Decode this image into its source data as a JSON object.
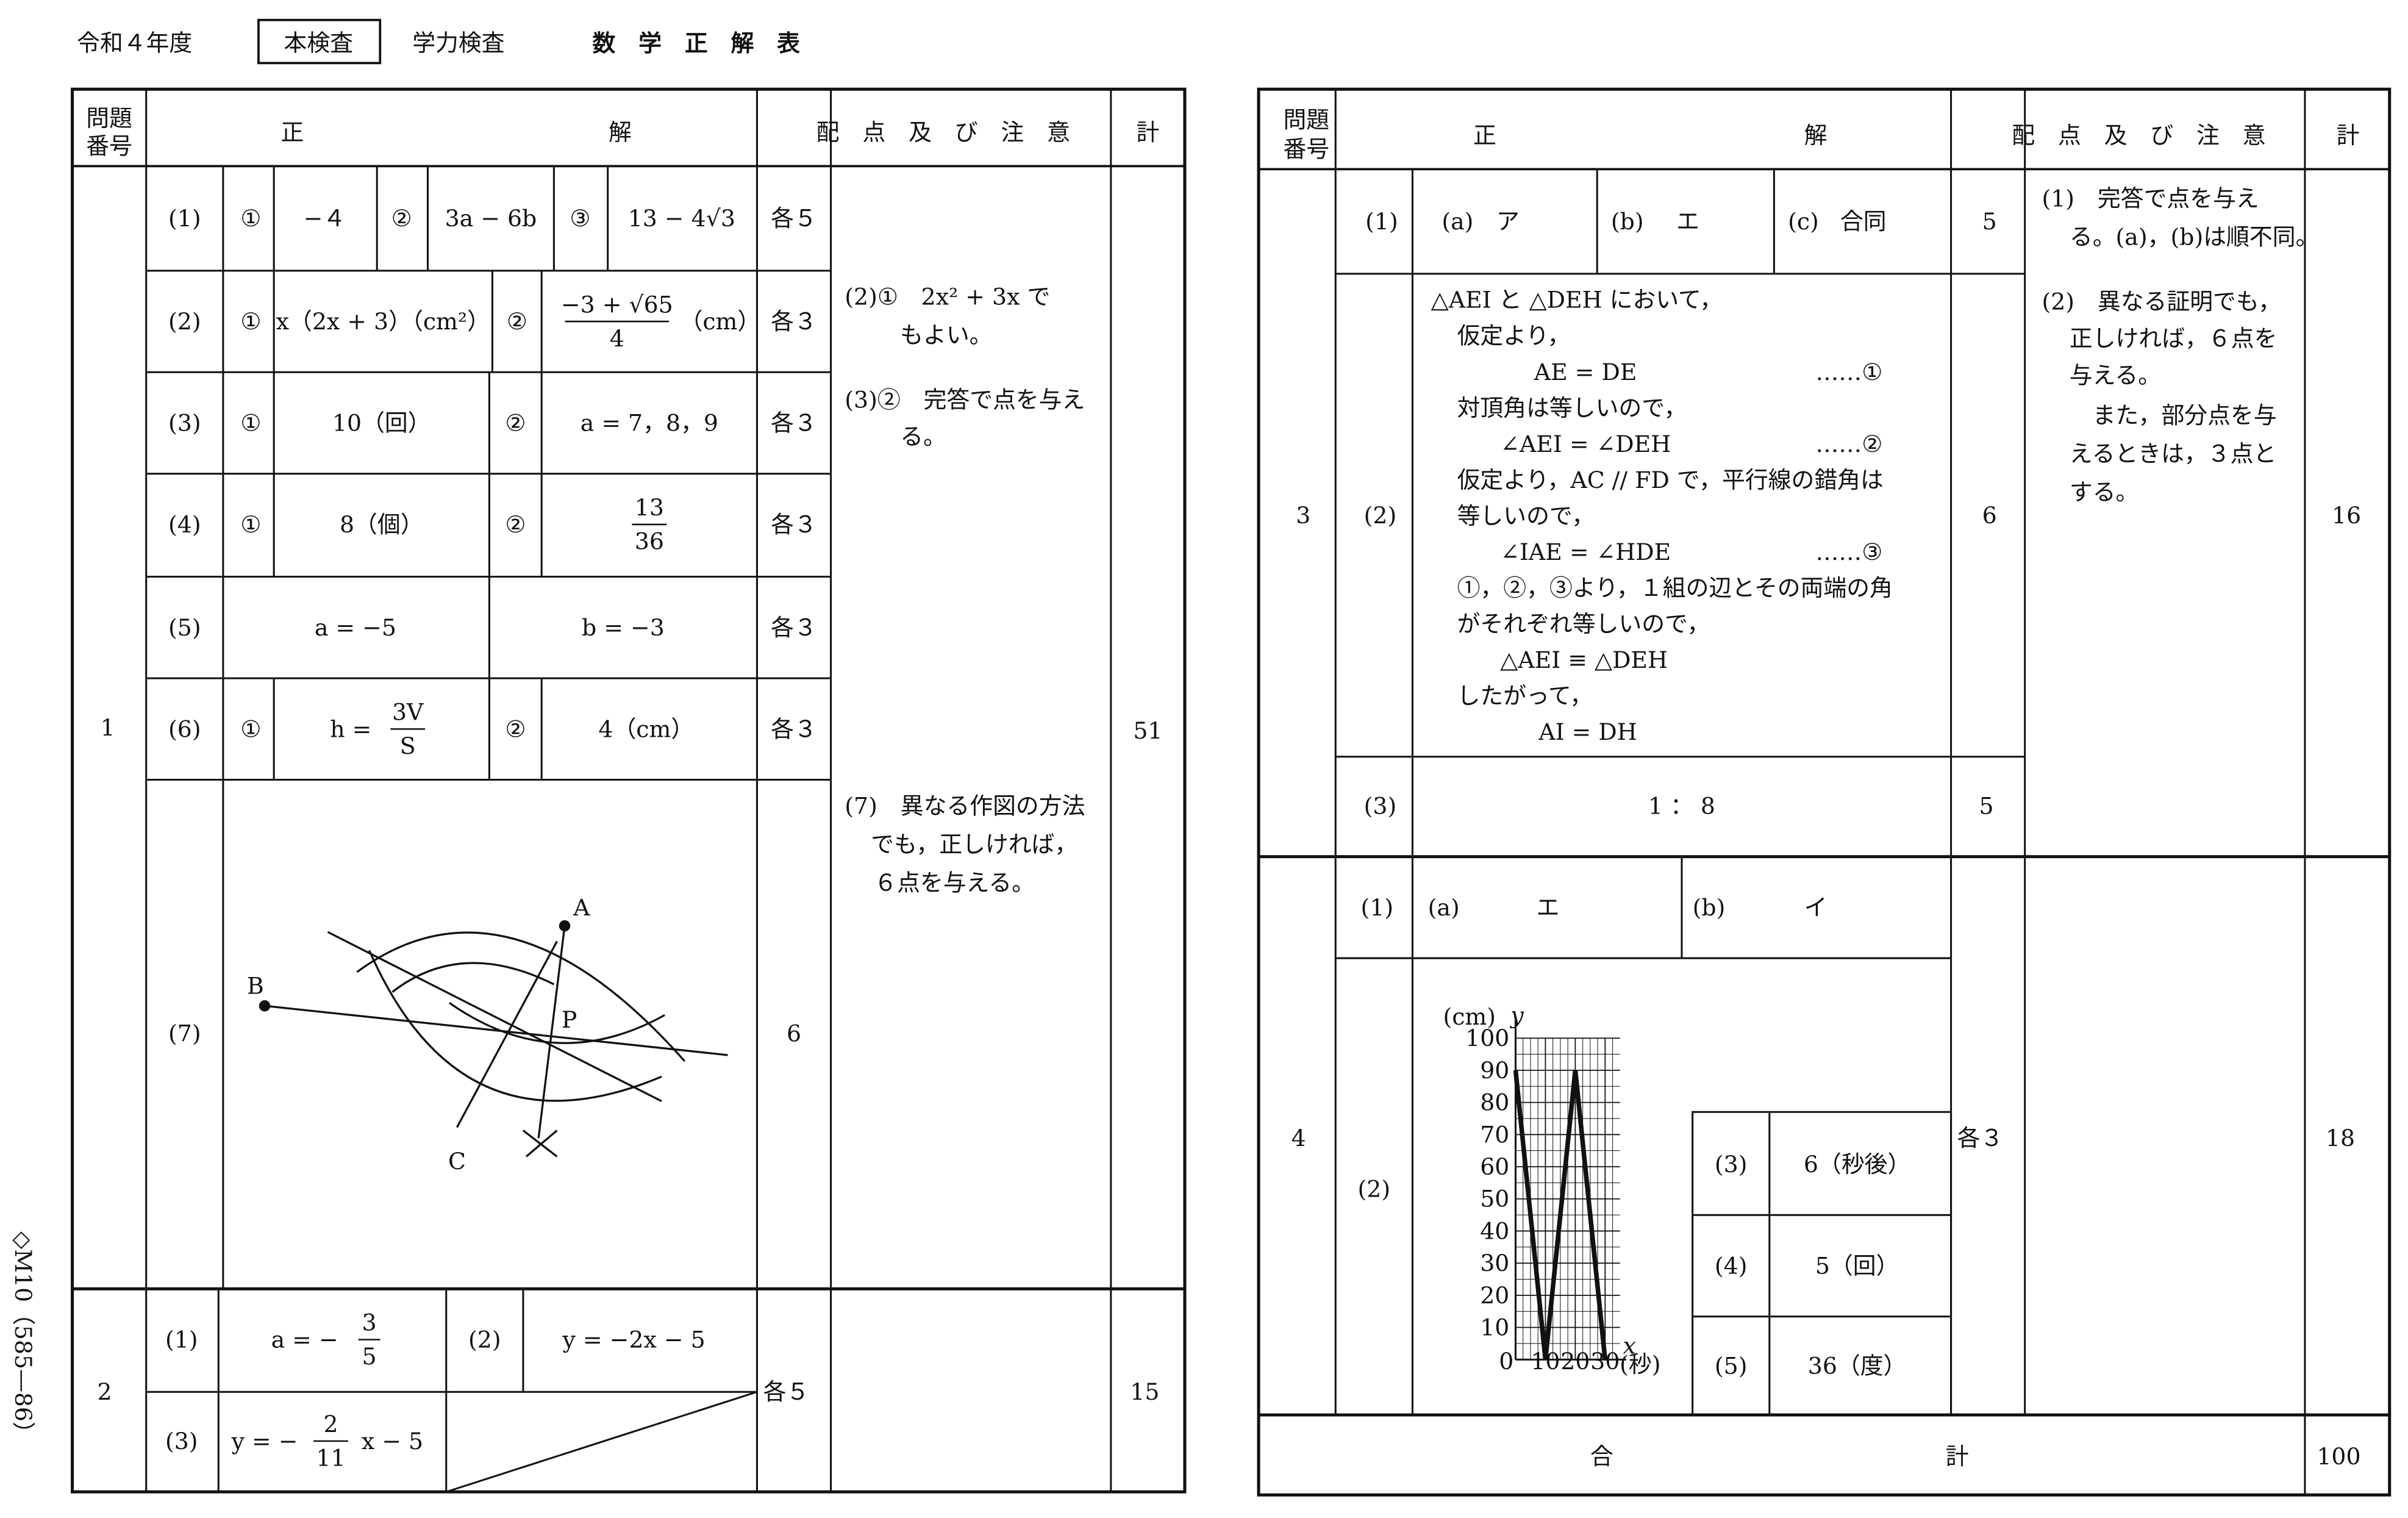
{
  "header": {
    "year": "令和４年度",
    "exam_type": "本検査",
    "subject_label": "学力検査",
    "title": "数　学　正　解　表"
  },
  "side_code": "◇M10（585—86）",
  "left_header": {
    "q_1": "問題",
    "q_2": "番号",
    "answer_1": "正",
    "answer_2": "解",
    "points": "配　点　及　び　注　意",
    "total": "計"
  },
  "q1": {
    "number": "1",
    "total": "51",
    "notes": [
      "(2)①　2x² + 3x で",
      "もよい。",
      "(3)②　完答で点を与え",
      "る。",
      "(7)　異なる作図の方法",
      "でも，正しければ，",
      "６点を与える。"
    ],
    "rows": [
      {
        "sub": "(1)",
        "points": "各５",
        "items": [
          {
            "mark": "①",
            "answer": "−４"
          },
          {
            "mark": "②",
            "answer": "3a − 6b"
          },
          {
            "mark": "③",
            "answer": "13 − 4√3"
          }
        ]
      },
      {
        "sub": "(2)",
        "points": "各３",
        "items": [
          {
            "mark": "①",
            "answer": "x（2x + 3）（cm²）"
          },
          {
            "mark": "②",
            "numerator": "−3 + √65",
            "denominator": "4",
            "unit": "（cm）"
          }
        ]
      },
      {
        "sub": "(3)",
        "points": "各３",
        "items": [
          {
            "mark": "①",
            "answer": "10（回）"
          },
          {
            "mark": "②",
            "answer": "a = 7，8，9"
          }
        ]
      },
      {
        "sub": "(4)",
        "points": "各３",
        "items": [
          {
            "mark": "①",
            "answer": "8（個）"
          },
          {
            "mark": "②",
            "numerator": "13",
            "denominator": "36"
          }
        ]
      },
      {
        "sub": "(5)",
        "points": "各３",
        "items": [
          {
            "answer": "a = −5"
          },
          {
            "answer": "b = −3"
          }
        ]
      },
      {
        "sub": "(6)",
        "points": "各３",
        "items": [
          {
            "mark": "①",
            "prefix": "h =",
            "numerator": "3V",
            "denominator": "S"
          },
          {
            "mark": "②",
            "answer": "4（cm）"
          }
        ]
      },
      {
        "sub": "(7)",
        "points": "6",
        "figure": {
          "a": "A",
          "b": "B",
          "c": "C",
          "p": "P"
        }
      }
    ]
  },
  "q2": {
    "number": "2",
    "total": "15",
    "points": "各５",
    "rows": [
      {
        "sub": "(1)",
        "answer": {
          "prefix": "a = −",
          "numerator": "3",
          "denominator": "5"
        },
        "sub2": "(2)",
        "answer2": "y = −2x − 5"
      },
      {
        "sub": "(3)",
        "answer": {
          "prefix": "y = −",
          "numerator": "2",
          "denominator": "11",
          "suffix": "x − 5"
        }
      }
    ]
  },
  "right_header": {
    "q_1": "問題",
    "q_2": "番号",
    "answer_1": "正",
    "answer_2": "解",
    "points": "配　点　及　び　注　意",
    "total": "計"
  },
  "q3": {
    "number": "3",
    "total": "16",
    "notes": [
      "(1)　完答で点を与え",
      "る。(a)，(b)は順不同。",
      "(2)　異なる証明でも，",
      "正しければ，６点を",
      "与える。",
      "　また，部分点を与",
      "えるときは，３点と",
      "する。"
    ],
    "rows": [
      {
        "sub": "(1)",
        "points": "5",
        "items": [
          {
            "label": "(a)",
            "answer": "ア"
          },
          {
            "label": "(b)",
            "answer": "エ"
          },
          {
            "label": "(c)",
            "answer": "合同"
          }
        ]
      },
      {
        "sub": "(2)",
        "points": "6",
        "proof": [
          "△AEI と △DEH において，",
          "仮定より，",
          "AE = DE",
          "対頂角は等しいので，",
          "∠AEI = ∠DEH",
          "仮定より，AC // FD で，平行線の錯角は",
          "等しいので，",
          "∠IAE = ∠HDE",
          "①，②，③より，１組の辺とその両端の角",
          "がそれぞれ等しいので，",
          "△AEI ≡ △DEH",
          "したがって，",
          "AI = DH"
        ],
        "refs": [
          "……①",
          "……②",
          "……③"
        ]
      },
      {
        "sub": "(3)",
        "points": "5",
        "answer": "1 ： 8"
      }
    ]
  },
  "q4": {
    "number": "4",
    "total": "18",
    "points": "各３",
    "rows": [
      {
        "sub": "(1)",
        "items": [
          {
            "label": "(a)",
            "answer": "エ"
          },
          {
            "label": "(b)",
            "answer": "イ"
          }
        ]
      },
      {
        "sub": "(2)",
        "graph": {
          "type": "line",
          "y_unit": "(cm)",
          "y_label": "y",
          "x_label": "x",
          "x_unit": "(秒)",
          "x": [
            0,
            10,
            20,
            30
          ],
          "values": [
            90,
            0,
            90,
            0
          ],
          "xlim": [
            0,
            35
          ],
          "ylim": [
            0,
            100
          ],
          "xticks": [
            0,
            10,
            20,
            30
          ],
          "yticks": [
            10,
            20,
            30,
            40,
            50,
            60,
            70,
            80,
            90,
            100
          ],
          "grid": true
        }
      },
      {
        "parts": [
          {
            "sub": "(3)",
            "answer": "6（秒後）"
          },
          {
            "sub": "(4)",
            "answer": "5（回）"
          },
          {
            "sub": "(5)",
            "answer": "36（度）"
          }
        ]
      }
    ]
  },
  "grand_total": {
    "label_1": "合",
    "label_2": "計",
    "value": "100"
  }
}
